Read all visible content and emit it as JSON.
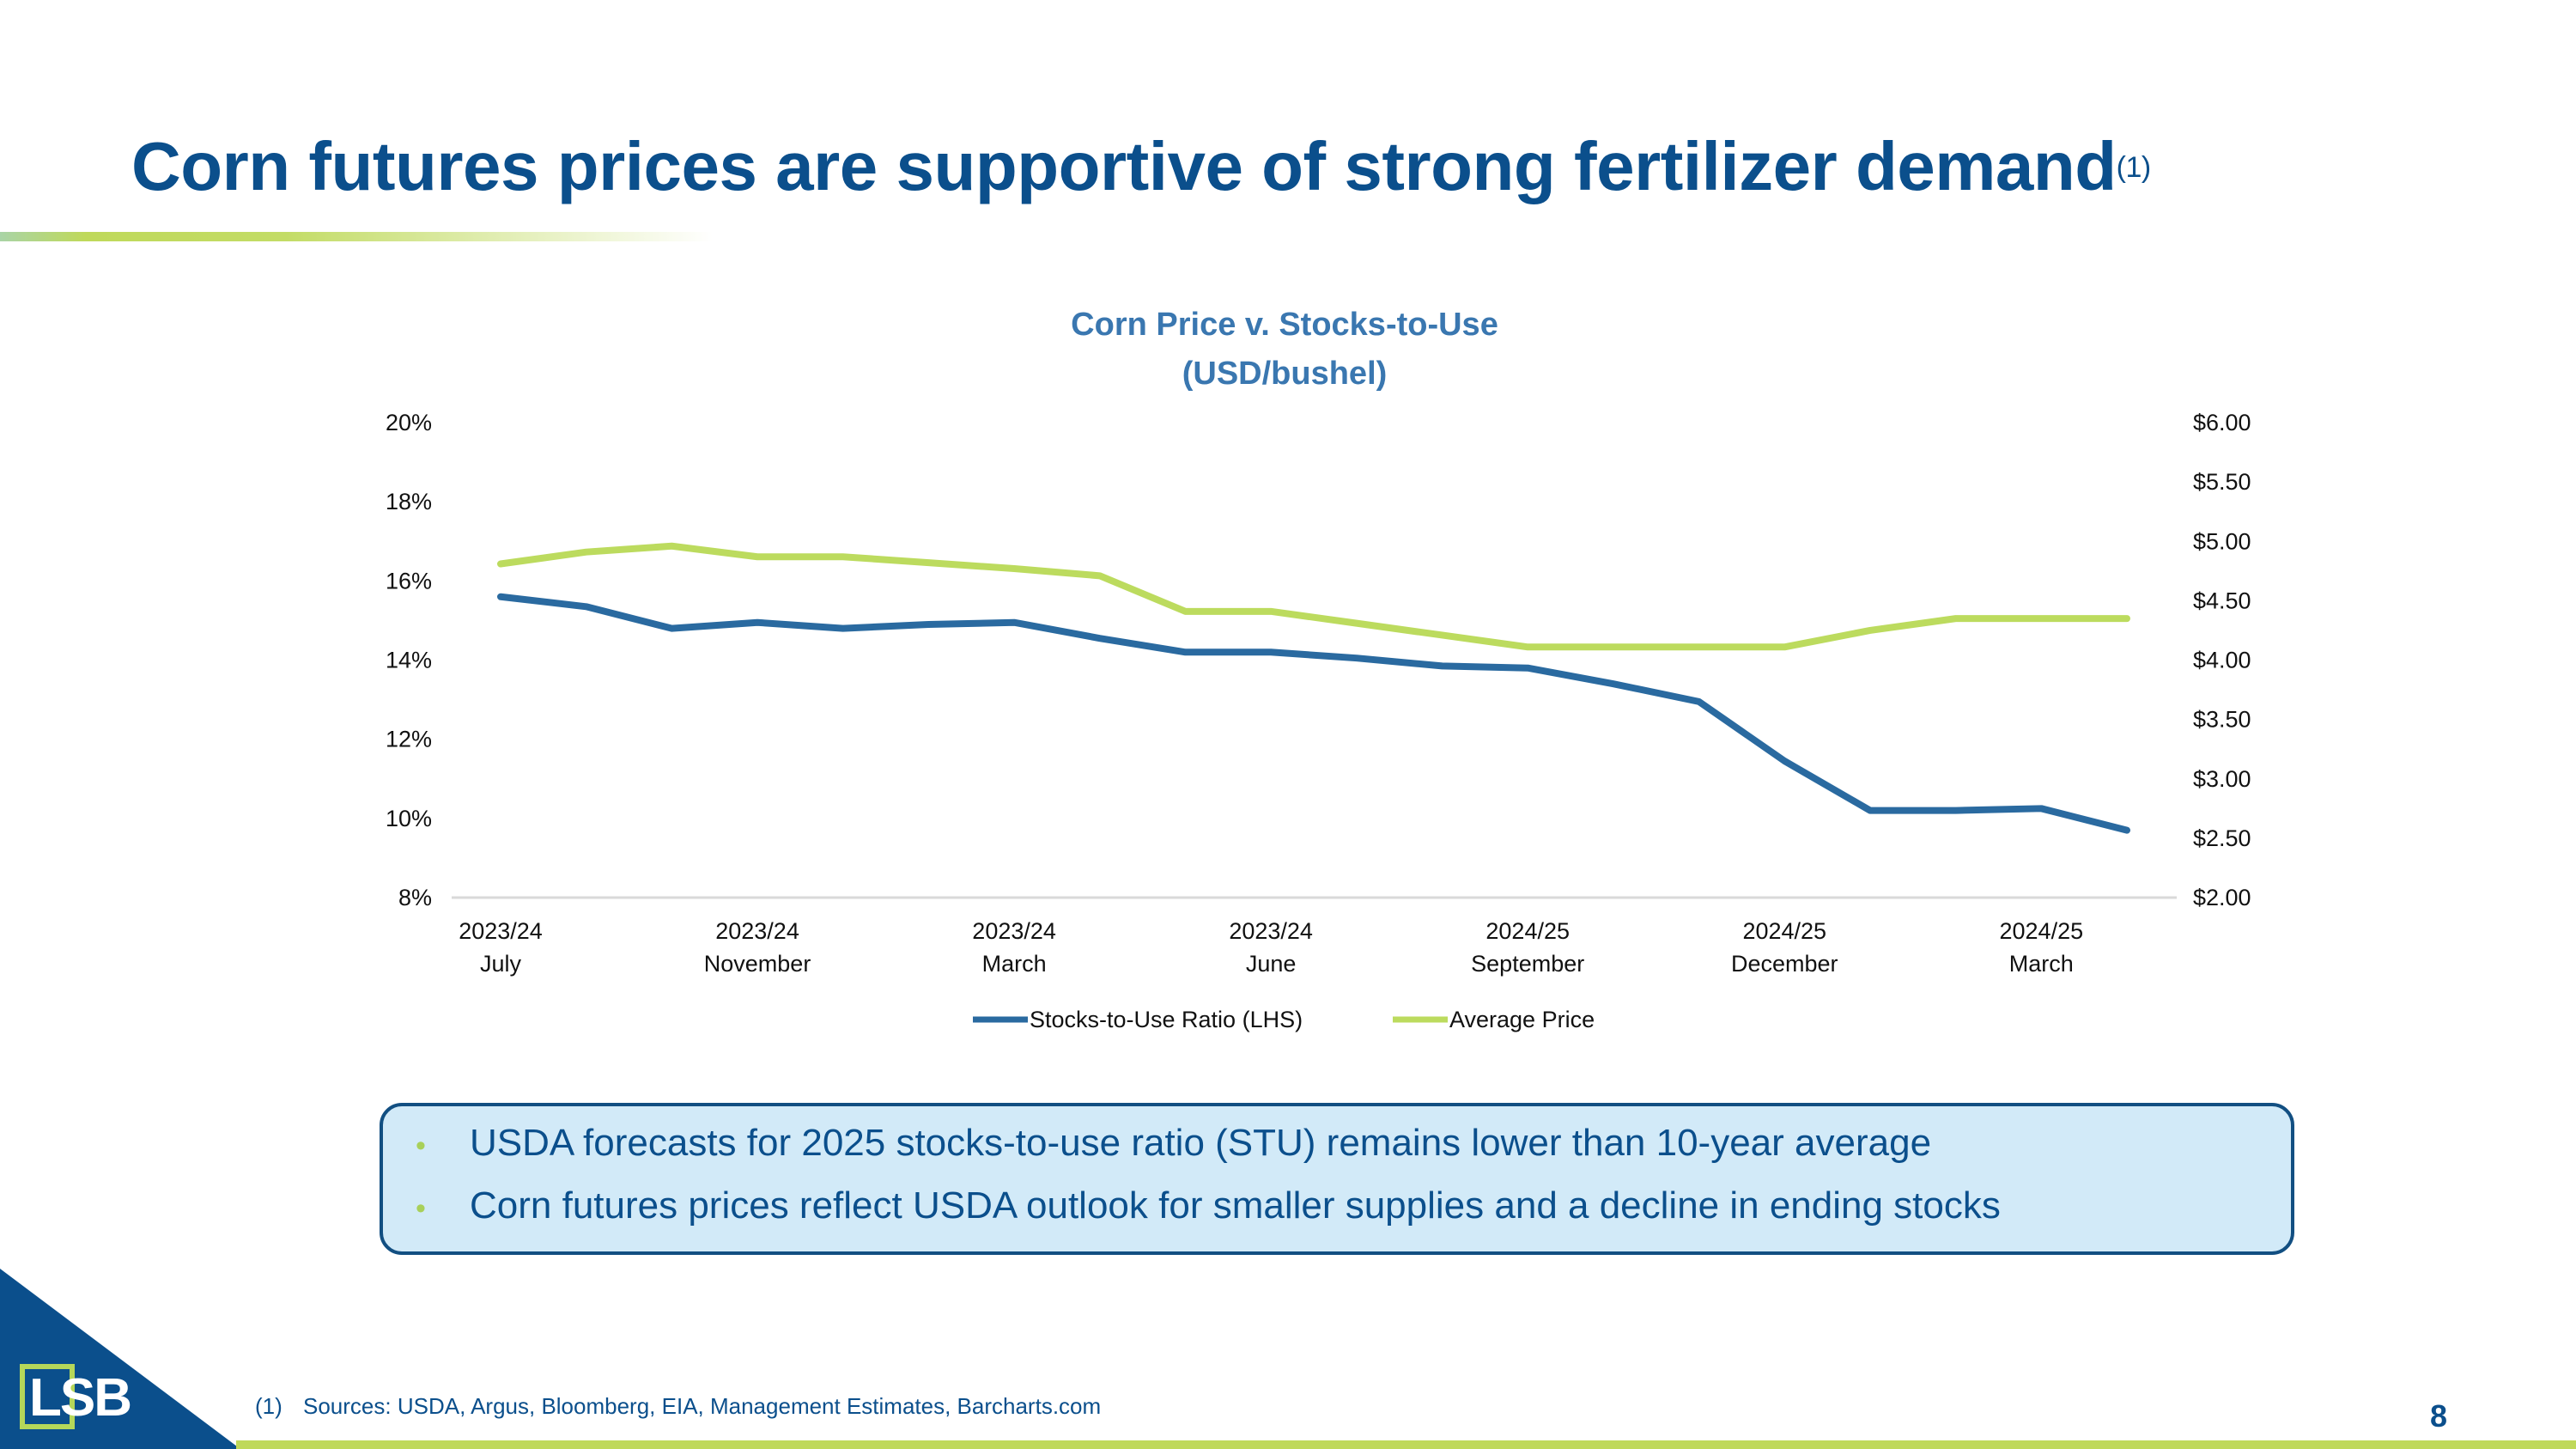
{
  "slide": {
    "title": "Corn futures prices are supportive of strong fertilizer demand",
    "title_footnote_ref": "(1)",
    "page_number": "8",
    "logo_text": "LSB",
    "colors": {
      "brand_blue": "#0b4f8c",
      "brand_green": "#bfd95a",
      "box_fill": "#d2eaf8"
    }
  },
  "callout": {
    "bullets": [
      "USDA forecasts for 2025 stocks-to-use ratio (STU) remains lower than 10-year average",
      "Corn futures prices reflect USDA outlook for smaller supplies and a decline in ending stocks"
    ],
    "bullet_glyph": "•"
  },
  "footnote": {
    "marker": "(1)",
    "text": "Sources: USDA, Argus, Bloomberg, EIA, Management Estimates, Barcharts.com"
  },
  "chart_data": {
    "type": "line",
    "title": [
      "Corn Price v. Stocks-to-Use",
      "(USD/bushel)"
    ],
    "x_count": 20,
    "x_tick_labels": [
      {
        "index": 0,
        "lines": [
          "2023/24",
          "July"
        ]
      },
      {
        "index": 3,
        "lines": [
          "2023/24",
          "November"
        ]
      },
      {
        "index": 6,
        "lines": [
          "2023/24",
          "March"
        ]
      },
      {
        "index": 9,
        "lines": [
          "2023/24",
          "June"
        ]
      },
      {
        "index": 12,
        "lines": [
          "2024/25",
          "September"
        ]
      },
      {
        "index": 15,
        "lines": [
          "2024/25",
          "December"
        ]
      },
      {
        "index": 18,
        "lines": [
          "2024/25",
          "March"
        ]
      }
    ],
    "y_left": {
      "ylim": [
        8,
        20
      ],
      "ticks": [
        "8%",
        "10%",
        "12%",
        "14%",
        "16%",
        "18%",
        "20%"
      ],
      "tick_values": [
        8,
        10,
        12,
        14,
        16,
        18,
        20
      ]
    },
    "y_right": {
      "ylim": [
        2,
        6
      ],
      "ticks": [
        "$2.00",
        "$2.50",
        "$3.00",
        "$3.50",
        "$4.00",
        "$4.50",
        "$5.00",
        "$5.50",
        "$6.00"
      ],
      "tick_values": [
        2,
        2.5,
        3,
        3.5,
        4,
        4.5,
        5,
        5.5,
        6
      ]
    },
    "series": [
      {
        "name": "Stocks-to-Use Ratio (LHS)",
        "axis": "left",
        "color": "#2a6aa0",
        "values": [
          15.6,
          15.35,
          14.8,
          14.95,
          14.8,
          14.9,
          14.95,
          14.55,
          14.2,
          14.2,
          14.05,
          13.85,
          13.8,
          13.4,
          12.95,
          11.45,
          10.2,
          10.2,
          10.25,
          9.7
        ]
      },
      {
        "name": "Average Price",
        "axis": "right",
        "color": "#bcdb5e",
        "values": [
          4.81,
          4.91,
          4.96,
          4.87,
          4.87,
          4.82,
          4.77,
          4.71,
          4.41,
          4.41,
          4.31,
          4.21,
          4.11,
          4.11,
          4.11,
          4.11,
          4.25,
          4.35,
          4.35,
          4.35
        ]
      }
    ],
    "grid": false,
    "legend": "bottom"
  }
}
